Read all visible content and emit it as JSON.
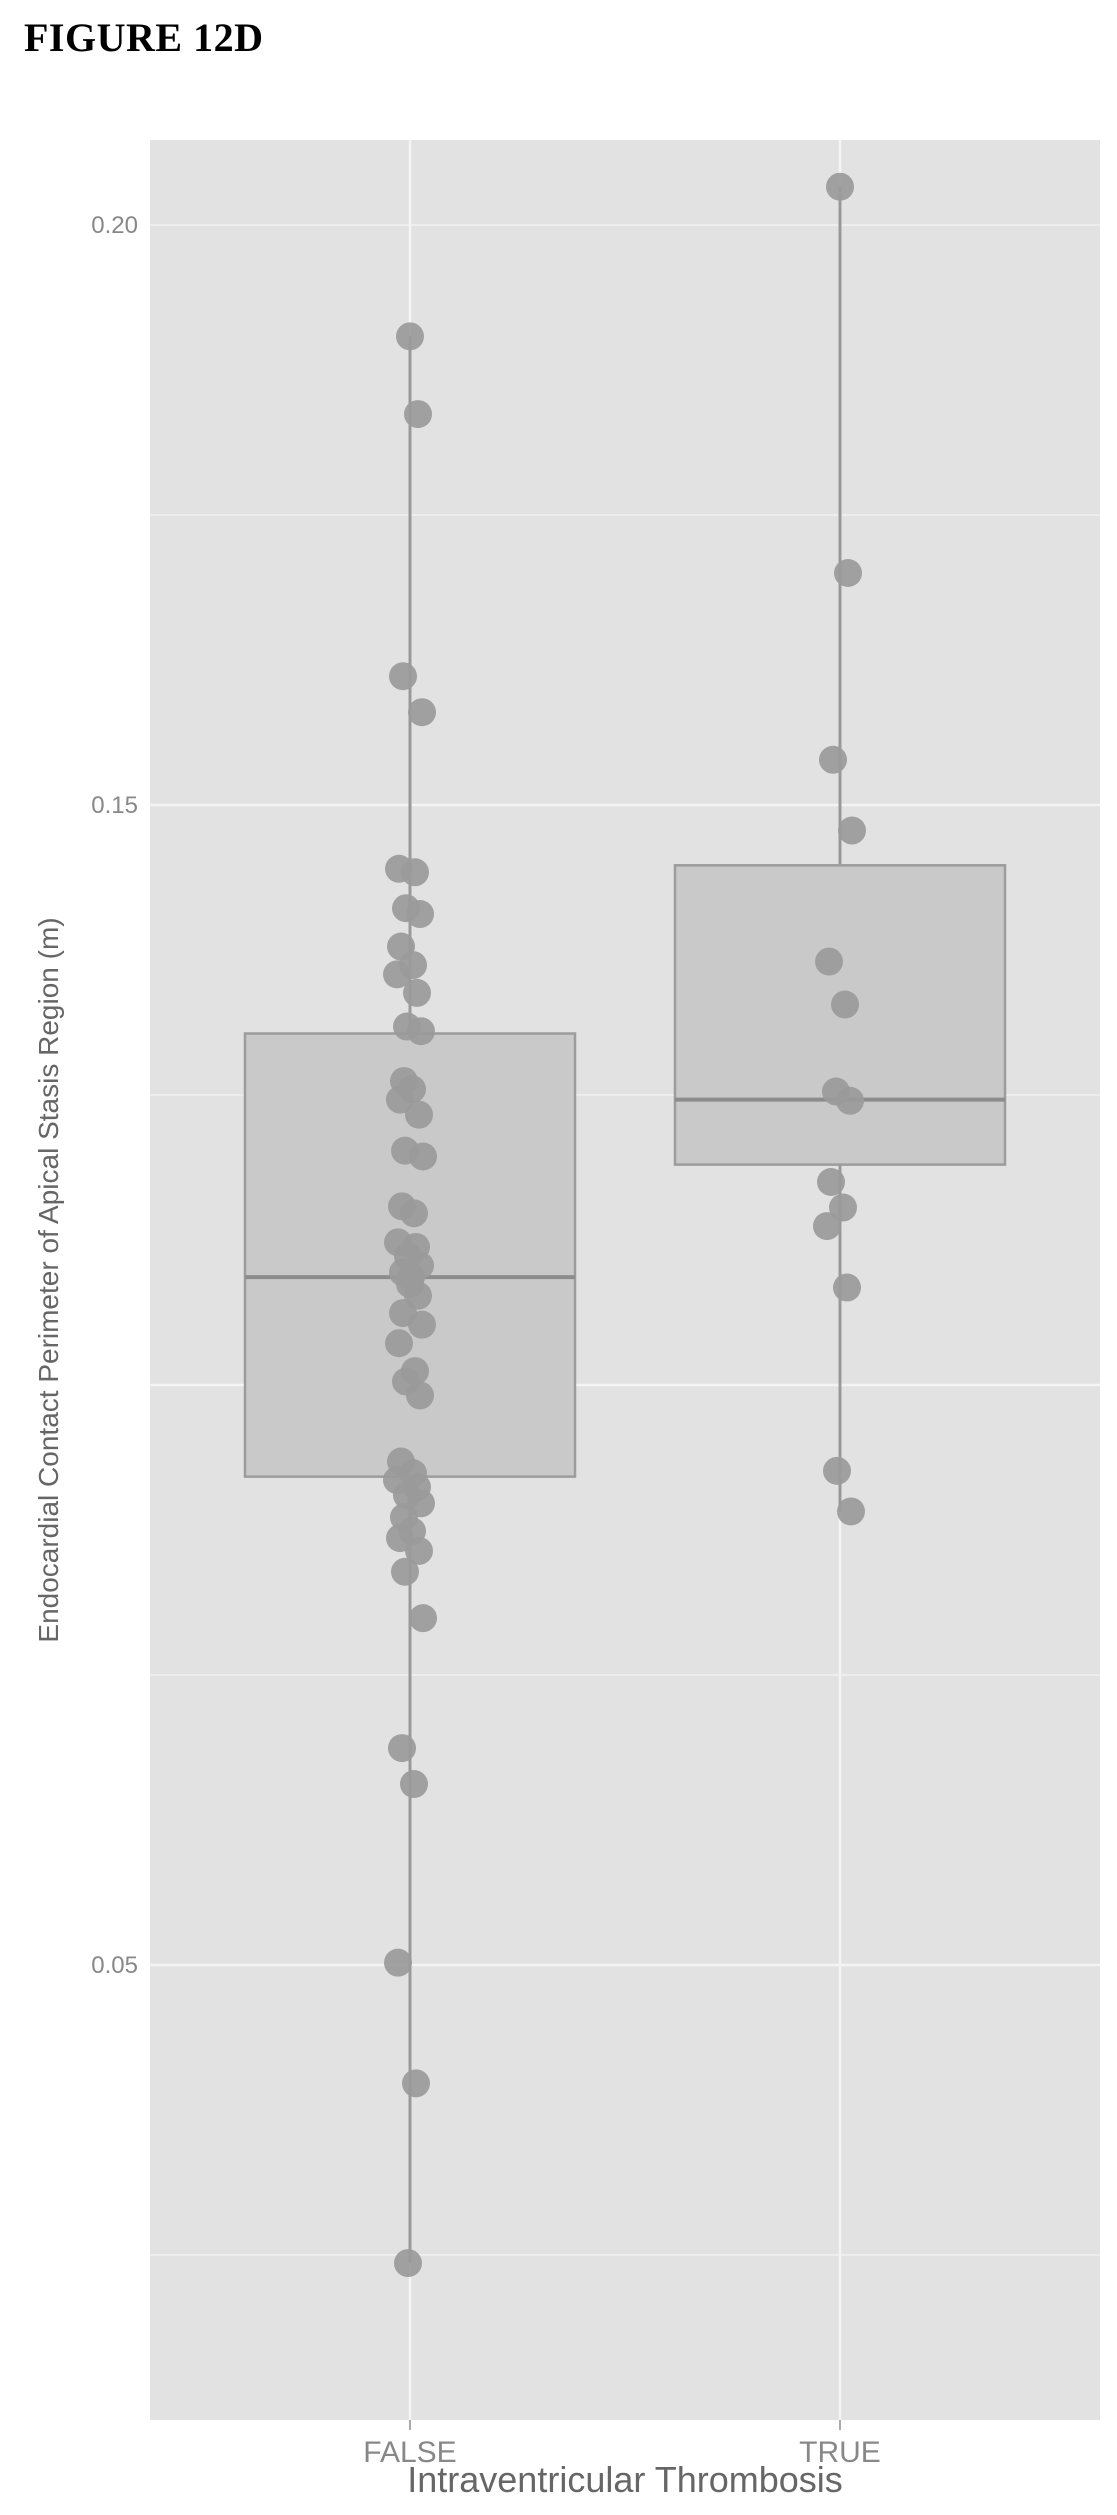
{
  "figure_label": "FIGURE 12D",
  "colors": {
    "panel_background": "#e2e2e2",
    "grid": "#f4f4f4",
    "box_fill": "#c9c9c9",
    "box_stroke": "#9c9c9c",
    "median": "#8c8c8c",
    "whisker": "#999999",
    "point": "#9a9a9a",
    "tick_text": "#888888",
    "axis_title": "#666666"
  },
  "chart_data": {
    "type": "box",
    "title": "",
    "xlabel": "Intraventricular Thrombosis",
    "ylabel": "Endocardial Contact Perimeter of Apical Stasis Region (m)",
    "ylim": [
      0.0103,
      0.2035
    ],
    "y_ticks": [
      0.05,
      0.15,
      0.2
    ],
    "y_tick_labels": [
      "0.05",
      "0.15",
      "0.20"
    ],
    "grid": true,
    "legend": "none",
    "categories": [
      "FALSE",
      "TRUE"
    ],
    "boxes": [
      {
        "category": "FALSE",
        "min": 0.0243,
        "q1": 0.0921,
        "median": 0.1093,
        "q3": 0.1303,
        "max": 0.1904
      },
      {
        "category": "TRUE",
        "min": 0.0891,
        "q1": 0.119,
        "median": 0.1246,
        "q3": 0.1448,
        "max": 0.2033
      }
    ],
    "points": [
      {
        "category": "FALSE",
        "values": [
          0.1904,
          0.1837,
          0.1611,
          0.158,
          0.1445,
          0.1442,
          0.1411,
          0.1406,
          0.1378,
          0.1362,
          0.1354,
          0.1338,
          0.1309,
          0.1305,
          0.1262,
          0.1255,
          0.1246,
          0.1233,
          0.1202,
          0.1197,
          0.1154,
          0.1148,
          0.1123,
          0.1119,
          0.1111,
          0.1103,
          0.1097,
          0.1093,
          0.1087,
          0.1077,
          0.1062,
          0.1052,
          0.1036,
          0.1012,
          0.1003,
          0.0991,
          0.0934,
          0.0924,
          0.0918,
          0.0912,
          0.0905,
          0.0898,
          0.0886,
          0.0874,
          0.0868,
          0.0857,
          0.0839,
          0.0799,
          0.0687,
          0.0656,
          0.0502,
          0.0398,
          0.0243
        ]
      },
      {
        "category": "TRUE",
        "values": [
          0.2033,
          0.17,
          0.1539,
          0.1478,
          0.1365,
          0.1328,
          0.1253,
          0.1245,
          0.1175,
          0.1153,
          0.1137,
          0.1084,
          0.0926,
          0.0891
        ]
      }
    ]
  }
}
